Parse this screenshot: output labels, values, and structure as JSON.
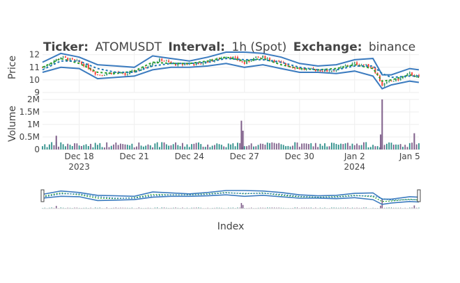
{
  "title": {
    "ticker_label": "Ticker:",
    "ticker_value": "ATOMUSDT",
    "interval_label": "Interval:",
    "interval_value": "1h (Spot)",
    "exchange_label": "Exchange:",
    "exchange_value": "binance"
  },
  "colors": {
    "increasing": "#3d9970",
    "decreasing": "#ff4136",
    "volume_bar": "#7f5f8a",
    "volume_bar_alt": "#2f8f8a",
    "bollinger": "#3b7bbf",
    "ma_green": "#2ca02c",
    "ma_blue_dotted": "#1f77b4",
    "grid": "#eeeeee",
    "range_handle": "#444444"
  },
  "chart_data": [
    {
      "type": "candlestick",
      "name": "price",
      "ylabel": "Price",
      "ylim": [
        9,
        12.2
      ],
      "y_ticks": [
        "9",
        "10",
        "11",
        "12"
      ],
      "y_tick_values": [
        9,
        10,
        11,
        12
      ],
      "x_range": [
        "2023-12-16",
        "2024-01-05 12:00"
      ],
      "grid": true,
      "close_series": [
        [
          "2023-12-16",
          11.0
        ],
        [
          "2023-12-16 12:00",
          11.4
        ],
        [
          "2023-12-17",
          11.8
        ],
        [
          "2023-12-17 12:00",
          11.6
        ],
        [
          "2023-12-18",
          11.4
        ],
        [
          "2023-12-18 12:00",
          11.0
        ],
        [
          "2023-12-19",
          10.4
        ],
        [
          "2023-12-19 12:00",
          10.5
        ],
        [
          "2023-12-20",
          10.6
        ],
        [
          "2023-12-20 12:00",
          10.4
        ],
        [
          "2023-12-21",
          10.7
        ],
        [
          "2023-12-21 12:00",
          10.9
        ],
        [
          "2023-12-22",
          11.4
        ],
        [
          "2023-12-22 12:00",
          11.6
        ],
        [
          "2023-12-23",
          11.3
        ],
        [
          "2023-12-23 12:00",
          11.2
        ],
        [
          "2023-12-24",
          11.3
        ],
        [
          "2023-12-24 12:00",
          11.2
        ],
        [
          "2023-12-25",
          11.5
        ],
        [
          "2023-12-25 12:00",
          11.6
        ],
        [
          "2023-12-26",
          11.9
        ],
        [
          "2023-12-26 12:00",
          11.7
        ],
        [
          "2023-12-27",
          11.3
        ],
        [
          "2023-12-27 12:00",
          11.7
        ],
        [
          "2023-12-28",
          11.8
        ],
        [
          "2023-12-28 12:00",
          11.6
        ],
        [
          "2023-12-29",
          11.3
        ],
        [
          "2023-12-29 12:00",
          11.1
        ],
        [
          "2023-12-30",
          10.9
        ],
        [
          "2023-12-30 12:00",
          10.8
        ],
        [
          "2023-12-31",
          10.8
        ],
        [
          "2023-12-31 12:00",
          10.7
        ],
        [
          "2024-01-01",
          10.8
        ],
        [
          "2024-01-01 12:00",
          11.1
        ],
        [
          "2024-01-02",
          11.3
        ],
        [
          "2024-01-02 12:00",
          11.2
        ],
        [
          "2024-01-03",
          11.0
        ],
        [
          "2024-01-03 12:00",
          9.6
        ],
        [
          "2024-01-04",
          9.9
        ],
        [
          "2024-01-04 12:00",
          10.1
        ],
        [
          "2024-01-05",
          10.5
        ],
        [
          "2024-01-05 12:00",
          10.2
        ]
      ],
      "bollinger_upper": [
        [
          "2023-12-16",
          11.4
        ],
        [
          "2023-12-17",
          12.1
        ],
        [
          "2023-12-18",
          11.8
        ],
        [
          "2023-12-19",
          11.2
        ],
        [
          "2023-12-20",
          11.1
        ],
        [
          "2023-12-21",
          11.0
        ],
        [
          "2023-12-22",
          11.9
        ],
        [
          "2023-12-23",
          11.7
        ],
        [
          "2023-12-24",
          11.5
        ],
        [
          "2023-12-25",
          11.8
        ],
        [
          "2023-12-26",
          12.2
        ],
        [
          "2023-12-27",
          12.2
        ],
        [
          "2023-12-28",
          12.1
        ],
        [
          "2023-12-29",
          11.8
        ],
        [
          "2023-12-30",
          11.3
        ],
        [
          "2023-12-31",
          11.1
        ],
        [
          "2024-01-01",
          11.2
        ],
        [
          "2024-01-02",
          11.6
        ],
        [
          "2024-01-03",
          11.7
        ],
        [
          "2024-01-03 12:00",
          10.4
        ],
        [
          "2024-01-04",
          10.4
        ],
        [
          "2024-01-05",
          10.9
        ],
        [
          "2024-01-05 12:00",
          10.8
        ]
      ],
      "bollinger_lower": [
        [
          "2023-12-16",
          10.6
        ],
        [
          "2023-12-17",
          11.0
        ],
        [
          "2023-12-18",
          10.9
        ],
        [
          "2023-12-19",
          10.1
        ],
        [
          "2023-12-20",
          10.2
        ],
        [
          "2023-12-21",
          10.3
        ],
        [
          "2023-12-22",
          10.8
        ],
        [
          "2023-12-23",
          11.0
        ],
        [
          "2023-12-24",
          11.0
        ],
        [
          "2023-12-25",
          11.1
        ],
        [
          "2023-12-26",
          11.3
        ],
        [
          "2023-12-27",
          11.0
        ],
        [
          "2023-12-28",
          11.2
        ],
        [
          "2023-12-29",
          10.9
        ],
        [
          "2023-12-30",
          10.6
        ],
        [
          "2023-12-31",
          10.6
        ],
        [
          "2024-01-01",
          10.5
        ],
        [
          "2024-01-02",
          10.7
        ],
        [
          "2024-01-03",
          10.3
        ],
        [
          "2024-01-03 12:00",
          9.3
        ],
        [
          "2024-01-04",
          9.6
        ],
        [
          "2024-01-05",
          9.9
        ],
        [
          "2024-01-05 12:00",
          9.8
        ]
      ],
      "ma_fast": [
        [
          "2023-12-16",
          11.0
        ],
        [
          "2023-12-17",
          11.7
        ],
        [
          "2023-12-18",
          11.3
        ],
        [
          "2023-12-19",
          10.6
        ],
        [
          "2023-12-20",
          10.5
        ],
        [
          "2023-12-21",
          10.7
        ],
        [
          "2023-12-22",
          11.4
        ],
        [
          "2023-12-23",
          11.3
        ],
        [
          "2023-12-24",
          11.3
        ],
        [
          "2023-12-25",
          11.5
        ],
        [
          "2023-12-26",
          11.8
        ],
        [
          "2023-12-27",
          11.5
        ],
        [
          "2023-12-28",
          11.7
        ],
        [
          "2023-12-29",
          11.2
        ],
        [
          "2023-12-30",
          10.9
        ],
        [
          "2023-12-31",
          10.8
        ],
        [
          "2024-01-01",
          10.9
        ],
        [
          "2024-01-02",
          11.2
        ],
        [
          "2024-01-03",
          10.9
        ],
        [
          "2024-01-03 12:00",
          9.9
        ],
        [
          "2024-01-04",
          10.0
        ],
        [
          "2024-01-05",
          10.4
        ],
        [
          "2024-01-05 12:00",
          10.2
        ]
      ],
      "ma_slow": [
        [
          "2023-12-16",
          10.8
        ],
        [
          "2023-12-17",
          11.5
        ],
        [
          "2023-12-18",
          11.5
        ],
        [
          "2023-12-19",
          10.9
        ],
        [
          "2023-12-20",
          10.6
        ],
        [
          "2023-12-21",
          10.6
        ],
        [
          "2023-12-22",
          11.1
        ],
        [
          "2023-12-23",
          11.3
        ],
        [
          "2023-12-24",
          11.3
        ],
        [
          "2023-12-25",
          11.4
        ],
        [
          "2023-12-26",
          11.7
        ],
        [
          "2023-12-27",
          11.6
        ],
        [
          "2023-12-28",
          11.6
        ],
        [
          "2023-12-29",
          11.4
        ],
        [
          "2023-12-30",
          11.0
        ],
        [
          "2023-12-31",
          10.8
        ],
        [
          "2024-01-01",
          10.8
        ],
        [
          "2024-01-02",
          11.1
        ],
        [
          "2024-01-03",
          11.1
        ],
        [
          "2024-01-03 12:00",
          10.5
        ],
        [
          "2024-01-04",
          10.2
        ],
        [
          "2024-01-05",
          10.3
        ],
        [
          "2024-01-05 12:00",
          10.3
        ]
      ]
    },
    {
      "type": "bar",
      "name": "volume",
      "ylabel": "Volume",
      "ylim": [
        0,
        2000000
      ],
      "y_ticks": [
        "0",
        "0.5M",
        "1M",
        "1.5M",
        "2M"
      ],
      "y_tick_values": [
        0,
        500000,
        1000000,
        1500000,
        2000000
      ],
      "x_ticks": [
        "Dec 18",
        "Dec 21",
        "Dec 24",
        "Dec 27",
        "Dec 30",
        "Jan 2",
        "Jan 5"
      ],
      "x_tick_values": [
        "2023-12-18",
        "2023-12-21",
        "2023-12-24",
        "2023-12-27",
        "2023-12-30",
        "2024-01-02",
        "2024-01-05"
      ],
      "x_tick_sublabels": {
        "Dec 18": "2023",
        "Jan 2": "2024"
      },
      "xlabel": "Index",
      "typical_volume": 200000,
      "spikes": [
        [
          "2023-12-16 18:00",
          550000
        ],
        [
          "2023-12-26 20:00",
          1150000
        ],
        [
          "2023-12-26 22:00",
          750000
        ],
        [
          "2024-01-03 12:00",
          2000000
        ],
        [
          "2024-01-03 10:00",
          600000
        ],
        [
          "2024-01-05 06:00",
          650000
        ]
      ]
    }
  ]
}
